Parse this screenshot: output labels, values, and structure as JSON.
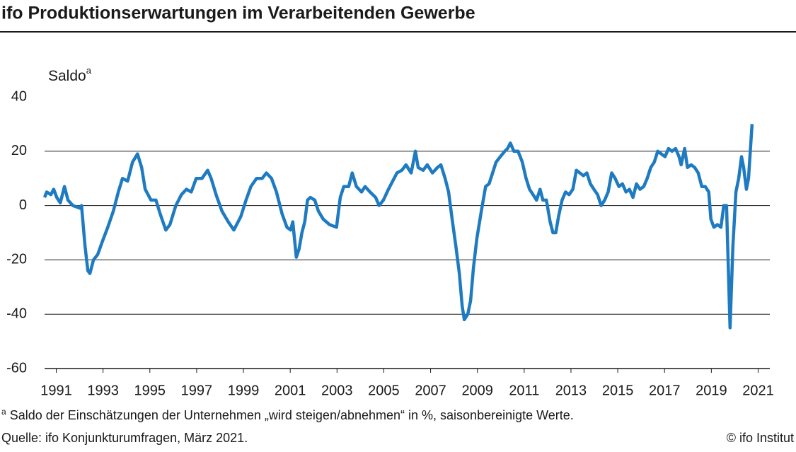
{
  "chart_data": {
    "type": "line",
    "title": "ifo Produktionserwartungen im Verarbeitenden Gewerbe",
    "y_label": "Saldo",
    "y_label_marker": "a",
    "footnote_marker": "a",
    "footnote": "Saldo der Einschätzungen der Unternehmen „wird steigen/abnehmen“ in %, saisonbereinigte Werte.",
    "source": "Quelle: ifo Konjunkturumfragen, März 2021.",
    "copyright": "© ifo Institut",
    "xlim": [
      1991,
      2022
    ],
    "ylim": [
      -60,
      40
    ],
    "xticks": [
      {
        "value": 1991.5,
        "label": "1991"
      },
      {
        "value": 1993.5,
        "label": "1993"
      },
      {
        "value": 1995.5,
        "label": "1995"
      },
      {
        "value": 1997.5,
        "label": "1997"
      },
      {
        "value": 1999.5,
        "label": "1999"
      },
      {
        "value": 2001.5,
        "label": "2001"
      },
      {
        "value": 2003.5,
        "label": "2003"
      },
      {
        "value": 2005.5,
        "label": "2005"
      },
      {
        "value": 2007.5,
        "label": "2007"
      },
      {
        "value": 2009.5,
        "label": "2009"
      },
      {
        "value": 2011.5,
        "label": "2011"
      },
      {
        "value": 2013.5,
        "label": "2013"
      },
      {
        "value": 2015.5,
        "label": "2015"
      },
      {
        "value": 2017.5,
        "label": "2017"
      },
      {
        "value": 2019.5,
        "label": "2019"
      },
      {
        "value": 2021.5,
        "label": "2021"
      }
    ],
    "yticks": [
      -60,
      -40,
      -20,
      0,
      20,
      40
    ],
    "grid": true,
    "color": "#1f7bc1",
    "x": [
      1991.0,
      1991.09,
      1991.27,
      1991.39,
      1991.52,
      1991.67,
      1991.85,
      1992.0,
      1992.21,
      1992.52,
      1992.58,
      1992.73,
      1992.85,
      1992.94,
      1993.09,
      1993.27,
      1993.48,
      1993.7,
      1993.94,
      1994.15,
      1994.33,
      1994.55,
      1994.76,
      1994.97,
      1995.15,
      1995.3,
      1995.55,
      1995.76,
      1995.94,
      1996.18,
      1996.36,
      1996.61,
      1996.85,
      1997.06,
      1997.27,
      1997.48,
      1997.73,
      1997.97,
      1998.12,
      1998.33,
      1998.58,
      1998.85,
      1999.09,
      1999.39,
      1999.61,
      1999.82,
      2000.06,
      2000.3,
      2000.48,
      2000.7,
      2000.91,
      2001.15,
      2001.36,
      2001.52,
      2001.61,
      2001.76,
      2001.88,
      2002.0,
      2002.12,
      2002.24,
      2002.36,
      2002.55,
      2002.7,
      2002.91,
      2003.18,
      2003.48,
      2003.64,
      2003.79,
      2004.0,
      2004.15,
      2004.33,
      2004.55,
      2004.7,
      2004.91,
      2005.15,
      2005.3,
      2005.48,
      2005.7,
      2005.88,
      2006.06,
      2006.27,
      2006.45,
      2006.67,
      2006.85,
      2006.97,
      2007.18,
      2007.36,
      2007.58,
      2007.79,
      2007.94,
      2008.12,
      2008.27,
      2008.42,
      2008.58,
      2008.73,
      2008.85,
      2008.94,
      2009.09,
      2009.21,
      2009.33,
      2009.48,
      2009.67,
      2009.85,
      2010.0,
      2010.15,
      2010.3,
      2010.48,
      2010.67,
      2010.79,
      2010.91,
      2011.06,
      2011.24,
      2011.42,
      2011.58,
      2011.73,
      2011.88,
      2012.03,
      2012.18,
      2012.3,
      2012.45,
      2012.61,
      2012.73,
      2012.85,
      2012.97,
      2013.12,
      2013.27,
      2013.42,
      2013.58,
      2013.73,
      2013.88,
      2014.03,
      2014.18,
      2014.33,
      2014.48,
      2014.64,
      2014.79,
      2014.94,
      2015.09,
      2015.24,
      2015.39,
      2015.55,
      2015.7,
      2015.85,
      2016.0,
      2016.15,
      2016.3,
      2016.45,
      2016.61,
      2016.76,
      2016.91,
      2017.06,
      2017.21,
      2017.36,
      2017.52,
      2017.67,
      2017.82,
      2017.97,
      2018.12,
      2018.21,
      2018.36,
      2018.48,
      2018.64,
      2018.79,
      2018.94,
      2019.09,
      2019.24,
      2019.39,
      2019.48,
      2019.61,
      2019.76,
      2019.91,
      2020.03,
      2020.15,
      2020.3,
      2020.42,
      2020.55,
      2020.67,
      2020.79,
      2020.88,
      2021.0,
      2021.09,
      2021.24
    ],
    "series": [
      {
        "values": [
          3,
          5,
          4,
          6,
          3,
          1,
          7,
          2,
          0,
          -1,
          0,
          -15,
          -24,
          -25,
          -20,
          -18,
          -13,
          -8,
          -2,
          5,
          10,
          9,
          16,
          19,
          14,
          6,
          2,
          2,
          -3,
          -9,
          -7,
          0,
          4,
          6,
          5,
          10,
          10,
          13,
          10,
          4,
          -2,
          -6,
          -9,
          -4,
          2,
          7,
          10,
          10,
          12,
          10,
          5,
          -3,
          -8,
          -9,
          -6,
          -19,
          -16,
          -10,
          -6,
          2,
          3,
          2,
          -2,
          -5,
          -7,
          -8,
          3,
          7,
          7,
          12,
          7,
          5,
          7,
          5,
          3,
          0,
          2,
          6,
          9,
          12,
          13,
          15,
          12,
          20,
          14,
          13,
          15,
          12,
          14,
          15,
          10,
          5,
          -5,
          -15,
          -25,
          -37,
          -42,
          -40,
          -35,
          -23,
          -12,
          -2,
          7,
          8,
          12,
          16,
          18,
          20,
          21,
          23,
          20,
          20,
          16,
          10,
          6,
          4,
          2,
          6,
          2,
          2,
          -6,
          -10,
          -10,
          -4,
          2,
          5,
          4,
          6,
          13,
          12,
          11,
          12,
          8,
          6,
          4,
          0,
          2,
          5,
          12,
          10,
          7,
          8,
          5,
          6,
          3,
          8,
          6,
          7,
          10,
          14,
          16,
          20,
          19,
          18,
          21,
          20,
          21,
          18,
          15,
          21,
          14,
          15,
          14,
          12,
          7,
          7,
          5,
          -5,
          -8,
          -7,
          -8,
          0,
          0,
          -45,
          -15,
          5,
          10,
          18,
          14,
          6,
          10,
          30
        ]
      }
    ]
  }
}
